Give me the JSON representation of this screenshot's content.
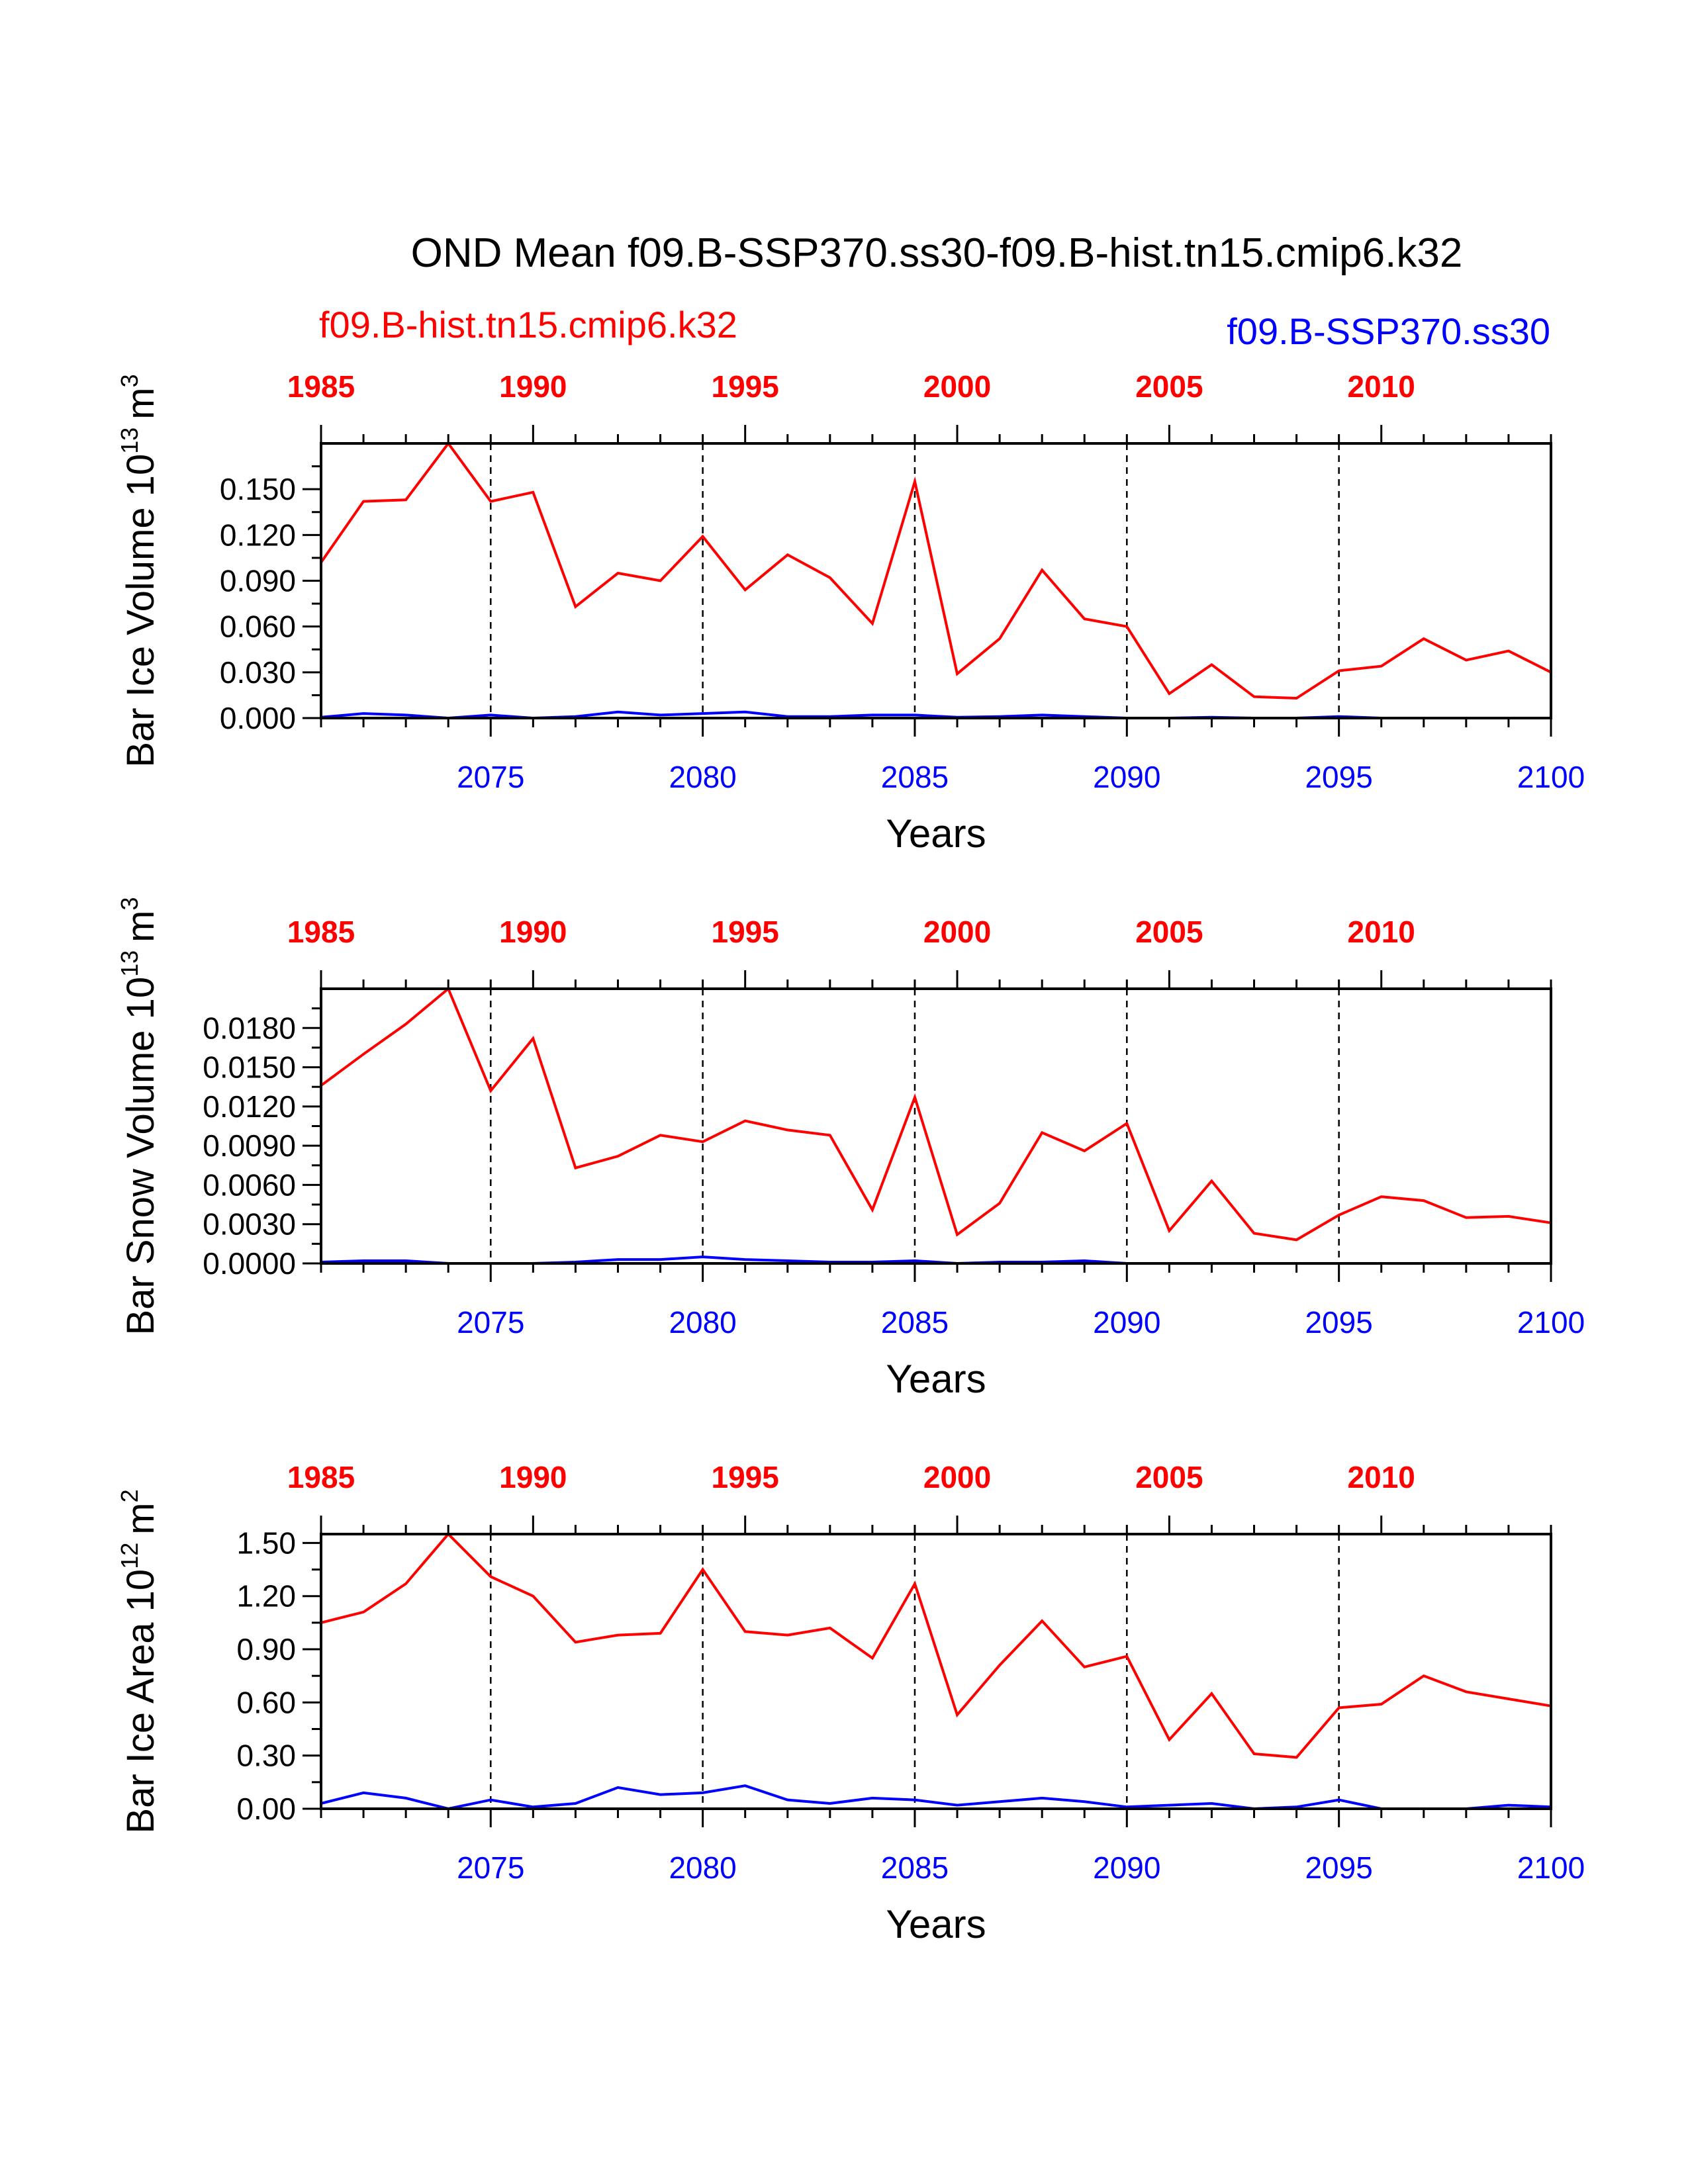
{
  "title": "OND Mean f09.B-SSP370.ss30-f09.B-hist.tn15.cmip6.k32",
  "legend": {
    "hist_label": "f09.B-hist.tn15.cmip6.k32",
    "ssp_label": "f09.B-SSP370.ss30"
  },
  "colors": {
    "hist": "#ff0000",
    "ssp": "#0000ff",
    "axis": "#000000"
  },
  "chart_data": [
    {
      "type": "line",
      "ylabel": "Bar Ice Volume 10",
      "ylabel_exp": "13",
      "ylabel_unit": "m",
      "ylabel_unit_exp": "3",
      "xlabel": "Years",
      "xlim": [
        2071,
        2100
      ],
      "ylim": [
        0.0,
        0.18
      ],
      "yticks": [
        "0.000",
        "0.030",
        "0.060",
        "0.090",
        "0.120",
        "0.150"
      ],
      "yticks_values": [
        0.0,
        0.03,
        0.06,
        0.09,
        0.12,
        0.15
      ],
      "bottom_ticks": [
        "2075",
        "2080",
        "2085",
        "2090",
        "2095",
        "2100"
      ],
      "bottom_ticks_values": [
        2075,
        2080,
        2085,
        2090,
        2095,
        2100
      ],
      "top_ticks": [
        "1985",
        "1990",
        "1995",
        "2000",
        "2005",
        "2010"
      ],
      "top_ticks_positions": [
        2071,
        2076,
        2081,
        2086,
        2091,
        2096
      ],
      "dashed_gridlines_x": [
        2075,
        2080,
        2085,
        2090,
        2095
      ],
      "x": [
        2071,
        2072,
        2073,
        2074,
        2075,
        2076,
        2077,
        2078,
        2079,
        2080,
        2081,
        2082,
        2083,
        2084,
        2085,
        2086,
        2087,
        2088,
        2089,
        2090,
        2091,
        2092,
        2093,
        2094,
        2095,
        2096,
        2097,
        2098,
        2099,
        2100
      ],
      "series": [
        {
          "values": [
            0.102,
            0.142,
            0.143,
            0.18,
            0.142,
            0.148,
            0.073,
            0.095,
            0.09,
            0.119,
            0.084,
            0.107,
            0.092,
            0.062,
            0.155,
            0.029,
            0.052,
            0.097,
            0.065,
            0.06,
            0.016,
            0.035,
            0.014,
            0.013,
            0.031,
            0.034,
            0.052,
            0.038,
            0.044,
            0.03
          ],
          "color": "#ff0000"
        },
        {
          "values": [
            0.0005,
            0.003,
            0.002,
            0.0,
            0.002,
            0.0,
            0.001,
            0.004,
            0.002,
            0.003,
            0.004,
            0.001,
            0.001,
            0.002,
            0.002,
            0.0005,
            0.001,
            0.002,
            0.001,
            0.0,
            0.0,
            0.0005,
            0.0,
            0.0,
            0.001,
            0.0,
            0.0,
            0.0,
            0.0,
            0.0
          ],
          "color": "#0000ff"
        }
      ]
    },
    {
      "type": "line",
      "ylabel": "Bar Snow Volume 10",
      "ylabel_exp": "13",
      "ylabel_unit": "m",
      "ylabel_unit_exp": "3",
      "xlabel": "Years",
      "xlim": [
        2071,
        2100
      ],
      "ylim": [
        0.0,
        0.021
      ],
      "yticks": [
        "0.0000",
        "0.0030",
        "0.0060",
        "0.0090",
        "0.0120",
        "0.0150",
        "0.0180"
      ],
      "yticks_values": [
        0.0,
        0.003,
        0.006,
        0.009,
        0.012,
        0.015,
        0.018
      ],
      "bottom_ticks": [
        "2075",
        "2080",
        "2085",
        "2090",
        "2095",
        "2100"
      ],
      "bottom_ticks_values": [
        2075,
        2080,
        2085,
        2090,
        2095,
        2100
      ],
      "top_ticks": [
        "1985",
        "1990",
        "1995",
        "2000",
        "2005",
        "2010"
      ],
      "top_ticks_positions": [
        2071,
        2076,
        2081,
        2086,
        2091,
        2096
      ],
      "dashed_gridlines_x": [
        2075,
        2080,
        2085,
        2090,
        2095
      ],
      "x": [
        2071,
        2072,
        2073,
        2074,
        2075,
        2076,
        2077,
        2078,
        2079,
        2080,
        2081,
        2082,
        2083,
        2084,
        2085,
        2086,
        2087,
        2088,
        2089,
        2090,
        2091,
        2092,
        2093,
        2094,
        2095,
        2096,
        2097,
        2098,
        2099,
        2100
      ],
      "series": [
        {
          "values": [
            0.0136,
            0.016,
            0.0183,
            0.021,
            0.0132,
            0.0172,
            0.0073,
            0.0082,
            0.0098,
            0.0093,
            0.0109,
            0.0102,
            0.0098,
            0.0041,
            0.0127,
            0.0022,
            0.0046,
            0.01,
            0.0086,
            0.0107,
            0.0025,
            0.0063,
            0.0023,
            0.0018,
            0.0037,
            0.0051,
            0.0048,
            0.0035,
            0.0036,
            0.0031
          ],
          "color": "#ff0000"
        },
        {
          "values": [
            0.0001,
            0.0002,
            0.0002,
            0.0,
            0.0,
            0.0,
            0.0001,
            0.0003,
            0.0003,
            0.0005,
            0.0003,
            0.0002,
            0.0001,
            0.0001,
            0.0002,
            0.0,
            0.0001,
            0.0001,
            0.0002,
            0.0,
            0.0,
            0.0,
            0.0,
            0.0,
            0.0,
            0.0,
            0.0,
            0.0,
            0.0,
            0.0
          ],
          "color": "#0000ff"
        }
      ]
    },
    {
      "type": "line",
      "ylabel": "Bar Ice Area 10",
      "ylabel_exp": "12",
      "ylabel_unit": "m",
      "ylabel_unit_exp": "2",
      "xlabel": "Years",
      "xlim": [
        2071,
        2100
      ],
      "ylim": [
        0.0,
        1.55
      ],
      "yticks": [
        "0.00",
        "0.30",
        "0.60",
        "0.90",
        "1.20",
        "1.50"
      ],
      "yticks_values": [
        0.0,
        0.3,
        0.6,
        0.9,
        1.2,
        1.5
      ],
      "bottom_ticks": [
        "2075",
        "2080",
        "2085",
        "2090",
        "2095",
        "2100"
      ],
      "bottom_ticks_values": [
        2075,
        2080,
        2085,
        2090,
        2095,
        2100
      ],
      "top_ticks": [
        "1985",
        "1990",
        "1995",
        "2000",
        "2005",
        "2010"
      ],
      "top_ticks_positions": [
        2071,
        2076,
        2081,
        2086,
        2091,
        2096
      ],
      "dashed_gridlines_x": [
        2075,
        2080,
        2085,
        2090,
        2095
      ],
      "x": [
        2071,
        2072,
        2073,
        2074,
        2075,
        2076,
        2077,
        2078,
        2079,
        2080,
        2081,
        2082,
        2083,
        2084,
        2085,
        2086,
        2087,
        2088,
        2089,
        2090,
        2091,
        2092,
        2093,
        2094,
        2095,
        2096,
        2097,
        2098,
        2099,
        2100
      ],
      "series": [
        {
          "values": [
            1.05,
            1.11,
            1.27,
            1.55,
            1.31,
            1.2,
            0.94,
            0.98,
            0.99,
            1.35,
            1.0,
            0.98,
            1.02,
            0.85,
            1.27,
            0.53,
            0.81,
            1.06,
            0.8,
            0.86,
            0.39,
            0.65,
            0.31,
            0.29,
            0.57,
            0.59,
            0.75,
            0.66,
            0.62,
            0.58
          ],
          "color": "#ff0000"
        },
        {
          "values": [
            0.03,
            0.09,
            0.06,
            0.0,
            0.05,
            0.01,
            0.03,
            0.12,
            0.08,
            0.09,
            0.13,
            0.05,
            0.03,
            0.06,
            0.05,
            0.02,
            0.04,
            0.06,
            0.04,
            0.01,
            0.02,
            0.03,
            0.0,
            0.01,
            0.05,
            0.0,
            0.0,
            0.0,
            0.02,
            0.01
          ],
          "color": "#0000ff"
        }
      ]
    }
  ]
}
